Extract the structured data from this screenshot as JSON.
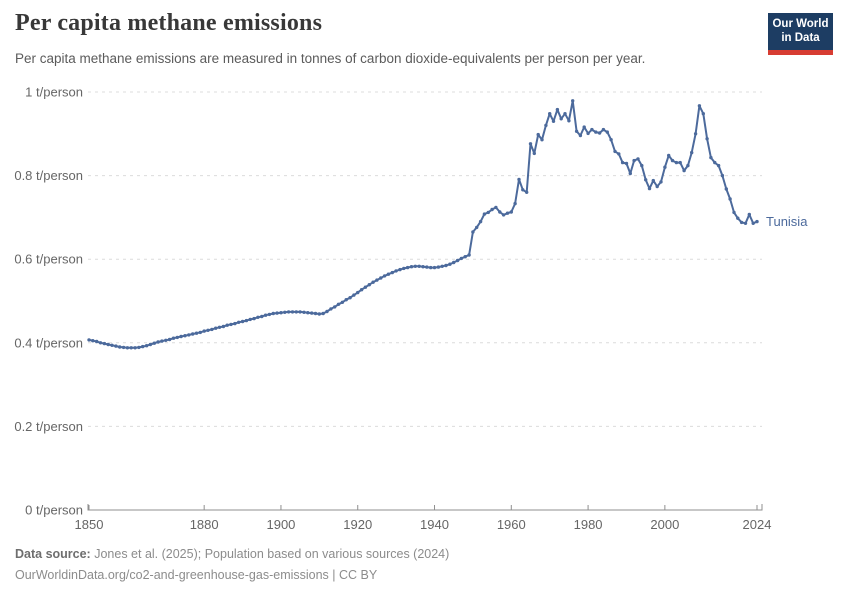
{
  "header": {
    "title": "Per capita methane emissions",
    "subtitle": "Per capita methane emissions are measured in tonnes of carbon dioxide-equivalents per person per year.",
    "logo": {
      "line1": "Our World",
      "line2": "in Data",
      "bg_color": "#1d3d63",
      "bar_color": "#d73c32"
    }
  },
  "chart_data": {
    "type": "line",
    "title": "Per capita methane emissions",
    "unit": "t/person",
    "xlabel": "",
    "ylabel": "",
    "xlim": [
      1850,
      2024
    ],
    "ylim": [
      0,
      1
    ],
    "grid": "horizontal-dashed",
    "legend_position": "end-of-line-label",
    "xticks": [
      1850,
      1880,
      1900,
      1920,
      1940,
      1960,
      1980,
      2000,
      2024
    ],
    "yticks": [
      {
        "value": 0,
        "label": "0 t/person"
      },
      {
        "value": 0.2,
        "label": "0.2 t/person"
      },
      {
        "value": 0.4,
        "label": "0.4 t/person"
      },
      {
        "value": 0.6,
        "label": "0.6 t/person"
      },
      {
        "value": 0.8,
        "label": "0.8 t/person"
      },
      {
        "value": 1,
        "label": "1 t/person"
      }
    ],
    "x_start_year": 1850,
    "series": [
      {
        "name": "Tunisia",
        "color": "#4c6a9c",
        "values": [
          0.407,
          0.405,
          0.403,
          0.4,
          0.398,
          0.396,
          0.394,
          0.392,
          0.39,
          0.389,
          0.388,
          0.388,
          0.388,
          0.389,
          0.391,
          0.393,
          0.396,
          0.399,
          0.402,
          0.404,
          0.406,
          0.408,
          0.411,
          0.413,
          0.415,
          0.417,
          0.419,
          0.421,
          0.423,
          0.425,
          0.428,
          0.43,
          0.432,
          0.435,
          0.437,
          0.439,
          0.442,
          0.444,
          0.446,
          0.449,
          0.451,
          0.453,
          0.456,
          0.458,
          0.461,
          0.463,
          0.466,
          0.468,
          0.47,
          0.471,
          0.472,
          0.473,
          0.474,
          0.474,
          0.474,
          0.474,
          0.473,
          0.472,
          0.471,
          0.47,
          0.469,
          0.47,
          0.475,
          0.481,
          0.486,
          0.492,
          0.497,
          0.503,
          0.508,
          0.514,
          0.52,
          0.527,
          0.533,
          0.539,
          0.545,
          0.55,
          0.555,
          0.56,
          0.564,
          0.568,
          0.572,
          0.575,
          0.578,
          0.58,
          0.582,
          0.583,
          0.583,
          0.582,
          0.581,
          0.58,
          0.58,
          0.581,
          0.583,
          0.585,
          0.588,
          0.592,
          0.597,
          0.602,
          0.606,
          0.61,
          0.665,
          0.676,
          0.69,
          0.708,
          0.712,
          0.719,
          0.724,
          0.713,
          0.706,
          0.71,
          0.713,
          0.733,
          0.791,
          0.766,
          0.76,
          0.876,
          0.853,
          0.898,
          0.886,
          0.92,
          0.948,
          0.93,
          0.958,
          0.936,
          0.948,
          0.931,
          0.979,
          0.906,
          0.896,
          0.916,
          0.901,
          0.91,
          0.904,
          0.902,
          0.91,
          0.904,
          0.886,
          0.858,
          0.852,
          0.831,
          0.829,
          0.805,
          0.836,
          0.84,
          0.824,
          0.79,
          0.769,
          0.788,
          0.774,
          0.785,
          0.82,
          0.848,
          0.836,
          0.831,
          0.831,
          0.812,
          0.824,
          0.855,
          0.9,
          0.967,
          0.948,
          0.888,
          0.843,
          0.831,
          0.824,
          0.8,
          0.768,
          0.744,
          0.712,
          0.698,
          0.688,
          0.686,
          0.707,
          0.686,
          0.69
        ]
      }
    ],
    "end_label": "Tunisia"
  },
  "footer": {
    "data_source_label": "Data source:",
    "data_source_text": "Jones et al. (2025); Population based on various sources (2024)",
    "link_line": "OurWorldinData.org/co2-and-greenhouse-gas-emissions | CC BY"
  },
  "colors": {
    "line": "#4c6a9c",
    "gridline": "#dcdcdc",
    "axis": "#8f8f8f",
    "tick_label": "#666666"
  }
}
